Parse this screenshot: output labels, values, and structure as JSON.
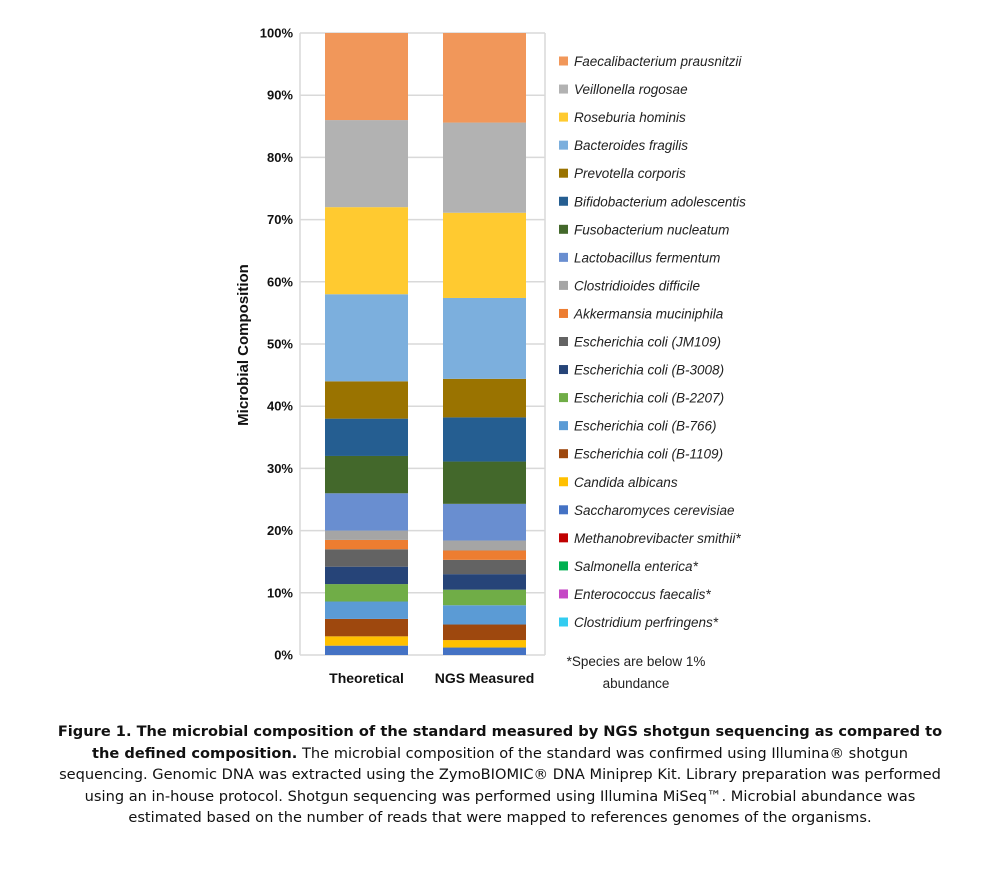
{
  "chart_data": {
    "type": "bar",
    "stacked": true,
    "ylabel": "Microbial Composition",
    "xlabel": "",
    "ylim": [
      0,
      100
    ],
    "yticks": [
      "0%",
      "10%",
      "20%",
      "30%",
      "40%",
      "50%",
      "60%",
      "70%",
      "80%",
      "90%",
      "100%"
    ],
    "grid": true,
    "legend_position": "right",
    "categories": [
      "Theoretical",
      "NGS Measured"
    ],
    "series": [
      {
        "name": "Clostridium perfringens*",
        "color": "#33CCF0",
        "values": [
          null,
          null
        ]
      },
      {
        "name": "Enterococcus faecalis*",
        "color": "#C548C5",
        "values": [
          null,
          null
        ]
      },
      {
        "name": "Salmonella enterica*",
        "color": "#00B050",
        "values": [
          null,
          null
        ]
      },
      {
        "name": "Methanobrevibacter smithii*",
        "color": "#C00000",
        "values": [
          null,
          null
        ]
      },
      {
        "name": "Saccharomyces cerevisiae",
        "color": "#4472C4",
        "values": [
          1.5,
          1.2
        ]
      },
      {
        "name": "Candida albicans",
        "color": "#FFC000",
        "values": [
          1.5,
          1.2
        ]
      },
      {
        "name": "Escherichia coli (B-1109)",
        "color": "#9E480E",
        "values": [
          2.8,
          2.5
        ]
      },
      {
        "name": "Escherichia coli (B-766)",
        "color": "#5B9BD5",
        "values": [
          2.8,
          3.1
        ]
      },
      {
        "name": "Escherichia coli (B-2207)",
        "color": "#70AD47",
        "values": [
          2.8,
          2.5
        ]
      },
      {
        "name": "Escherichia coli (B-3008)",
        "color": "#264478",
        "values": [
          2.8,
          2.5
        ]
      },
      {
        "name": "Escherichia coli (JM109)",
        "color": "#636363",
        "values": [
          2.8,
          2.3
        ]
      },
      {
        "name": "Akkermansia muciniphila",
        "color": "#ED7D31",
        "values": [
          1.5,
          1.5
        ]
      },
      {
        "name": "Clostridioides difficile",
        "color": "#A5A5A5",
        "values": [
          1.5,
          1.6
        ]
      },
      {
        "name": "Lactobacillus fermentum",
        "color": "#698ED0",
        "values": [
          6,
          5.9
        ]
      },
      {
        "name": "Fusobacterium nucleatum",
        "color": "#43682B",
        "values": [
          6,
          6.8
        ]
      },
      {
        "name": "Bifidobacterium adolescentis",
        "color": "#255E91",
        "values": [
          6,
          7.1
        ]
      },
      {
        "name": "Prevotella corporis",
        "color": "#9A7300",
        "values": [
          6,
          6.2
        ]
      },
      {
        "name": "Bacteroides fragilis",
        "color": "#7CAFDD",
        "values": [
          14,
          13.0
        ]
      },
      {
        "name": "Roseburia hominis",
        "color": "#FFCA30",
        "values": [
          14,
          13.7
        ]
      },
      {
        "name": "Veillonella rogosae",
        "color": "#B2B2B2",
        "values": [
          14,
          14.5
        ]
      },
      {
        "name": "Faecalibacterium prausnitzii",
        "color": "#F1975A",
        "values": [
          14,
          14.4
        ]
      }
    ],
    "footnote": [
      "*Species are below 1%",
      "abundance"
    ]
  },
  "caption": {
    "bold": "Figure 1. The microbial composition of the standard measured by NGS shotgun sequencing as compared to the defined composition.",
    "text": " The microbial composition of the standard was confirmed using Illumina® shotgun sequencing. Genomic DNA was extracted using the ZymoBIOMIC® DNA Miniprep Kit. Library preparation was performed using an in-house protocol. Shotgun sequencing was performed using Illumina MiSeq™. Microbial abundance was estimated based on the number of reads that were mapped to references genomes of the organisms."
  }
}
